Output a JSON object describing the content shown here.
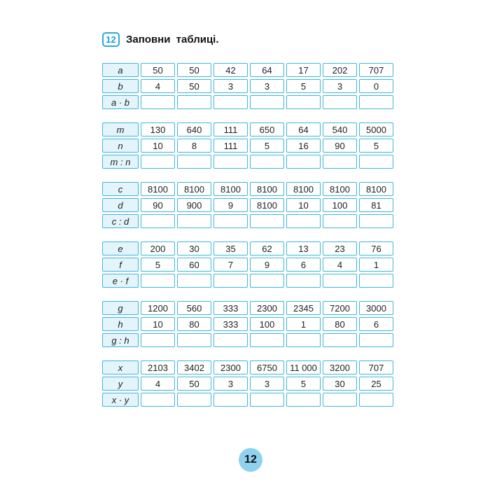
{
  "page": {
    "task_number": "12",
    "task_title": "Заповни  таблиці.",
    "page_number": "12"
  },
  "colors": {
    "cell_border": "#3db7db",
    "label_cell_bg": "#e3f4fb",
    "badge_border": "#2aa9df",
    "badge_text": "#1a9cd8",
    "page_circle_bg": "#8ed2ef"
  },
  "tables": [
    {
      "rows": [
        {
          "label": "a",
          "values": [
            "50",
            "50",
            "42",
            "64",
            "17",
            "202",
            "707"
          ]
        },
        {
          "label": "b",
          "values": [
            "4",
            "50",
            "3",
            "3",
            "5",
            "3",
            "0"
          ]
        },
        {
          "label": "a · b",
          "values": [
            "",
            "",
            "",
            "",
            "",
            "",
            ""
          ]
        }
      ]
    },
    {
      "rows": [
        {
          "label": "m",
          "values": [
            "130",
            "640",
            "111",
            "650",
            "64",
            "540",
            "5000"
          ]
        },
        {
          "label": "n",
          "values": [
            "10",
            "8",
            "111",
            "5",
            "16",
            "90",
            "5"
          ]
        },
        {
          "label": "m : n",
          "values": [
            "",
            "",
            "",
            "",
            "",
            "",
            ""
          ]
        }
      ]
    },
    {
      "rows": [
        {
          "label": "c",
          "values": [
            "8100",
            "8100",
            "8100",
            "8100",
            "8100",
            "8100",
            "8100"
          ]
        },
        {
          "label": "d",
          "values": [
            "90",
            "900",
            "9",
            "8100",
            "10",
            "100",
            "81"
          ]
        },
        {
          "label": "c : d",
          "values": [
            "",
            "",
            "",
            "",
            "",
            "",
            ""
          ]
        }
      ]
    },
    {
      "rows": [
        {
          "label": "e",
          "values": [
            "200",
            "30",
            "35",
            "62",
            "13",
            "23",
            "76"
          ]
        },
        {
          "label": "f",
          "values": [
            "5",
            "60",
            "7",
            "9",
            "6",
            "4",
            "1"
          ]
        },
        {
          "label": "e · f",
          "values": [
            "",
            "",
            "",
            "",
            "",
            "",
            ""
          ]
        }
      ]
    },
    {
      "rows": [
        {
          "label": "g",
          "values": [
            "1200",
            "560",
            "333",
            "2300",
            "2345",
            "7200",
            "3000"
          ]
        },
        {
          "label": "h",
          "values": [
            "10",
            "80",
            "333",
            "100",
            "1",
            "80",
            "6"
          ]
        },
        {
          "label": "g : h",
          "values": [
            "",
            "",
            "",
            "",
            "",
            "",
            ""
          ]
        }
      ]
    },
    {
      "rows": [
        {
          "label": "x",
          "values": [
            "2103",
            "3402",
            "2300",
            "6750",
            "11 000",
            "3200",
            "707"
          ]
        },
        {
          "label": "y",
          "values": [
            "4",
            "50",
            "3",
            "3",
            "5",
            "30",
            "25"
          ]
        },
        {
          "label": "x · y",
          "values": [
            "",
            "",
            "",
            "",
            "",
            "",
            ""
          ]
        }
      ]
    }
  ]
}
